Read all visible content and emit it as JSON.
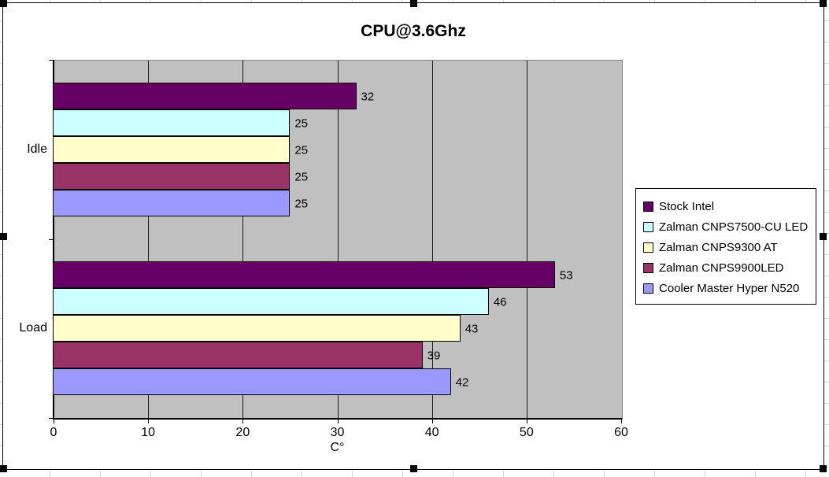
{
  "chart_data": {
    "type": "bar",
    "orientation": "horizontal",
    "title": "CPU@3.6Ghz",
    "xlabel": "C°",
    "categories": [
      "Idle",
      "Load"
    ],
    "series": [
      {
        "name": "Stock Intel",
        "color": "#660066",
        "values": [
          32,
          53
        ]
      },
      {
        "name": "Zalman CNPS7500-CU LED",
        "color": "#CCFFFF",
        "values": [
          25,
          46
        ]
      },
      {
        "name": "Zalman CNPS9300 AT",
        "color": "#FFFFCC",
        "values": [
          25,
          43
        ]
      },
      {
        "name": "Zalman CNPS9900LED",
        "color": "#993366",
        "values": [
          25,
          39
        ]
      },
      {
        "name": "Cooler Master Hyper N520",
        "color": "#9999FF",
        "values": [
          25,
          42
        ]
      }
    ],
    "data_labels": {
      "Idle": [
        32,
        25,
        25,
        25,
        25
      ],
      "Load": [
        53,
        46,
        43,
        39,
        42
      ]
    },
    "x_ticks": [
      0,
      10,
      20,
      30,
      40,
      50,
      60
    ],
    "xlim": [
      0,
      60
    ],
    "grid": "vertical",
    "legend_position": "right",
    "plot_background": "#C0C0C0",
    "chart_background": "#FFFFFF",
    "selection_state": "chart-object-selected"
  }
}
